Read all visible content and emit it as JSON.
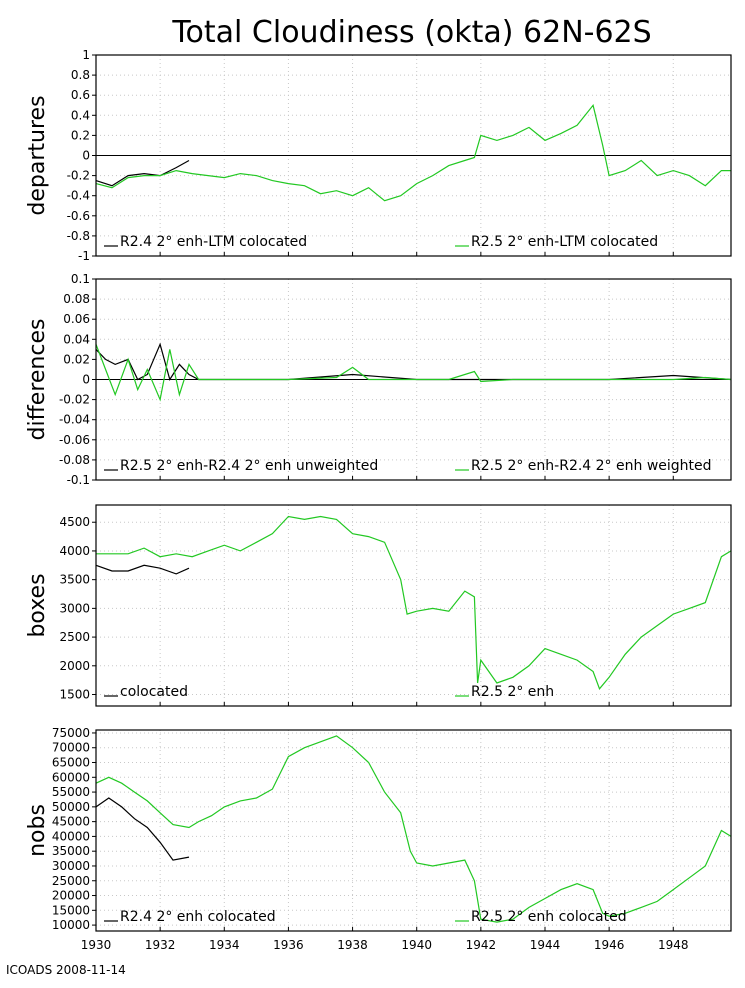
{
  "title": "Total Cloudiness (okta) 62N-62S",
  "credit": "ICOADS 2008-11-14",
  "x_ticks": [
    "1930",
    "1932",
    "1934",
    "1936",
    "1938",
    "1940",
    "1942",
    "1944",
    "1946",
    "1948"
  ],
  "colors": {
    "black": "#000000",
    "green": "#22c822",
    "grid": "#c8c8c8"
  },
  "chart_data": [
    {
      "type": "line",
      "ylabel": "departures",
      "ylim": [
        -1,
        1
      ],
      "y_ticks": [
        "1",
        "0.8",
        "0.6",
        "0.4",
        "0.2",
        "0",
        "-0.2",
        "-0.4",
        "-0.6",
        "-0.8",
        "-1"
      ],
      "xlim": [
        1930,
        1949.8
      ],
      "zero_line": true,
      "legend": [
        "R2.4 2° enh-LTM colocated",
        "R2.5 2° enh-LTM colocated"
      ],
      "series": [
        {
          "name": "R2.4 2° enh-LTM colocated",
          "color": "#000000",
          "x": [
            1930,
            1930.5,
            1931,
            1931.5,
            1932,
            1932.5,
            1932.9
          ],
          "y": [
            -0.25,
            -0.3,
            -0.2,
            -0.18,
            -0.2,
            -0.12,
            -0.05
          ]
        },
        {
          "name": "R2.5 2° enh-LTM colocated",
          "color": "#22c822",
          "x": [
            1930,
            1930.5,
            1931,
            1931.5,
            1932,
            1932.5,
            1933,
            1933.5,
            1934,
            1934.5,
            1935,
            1935.5,
            1936,
            1936.5,
            1937,
            1937.5,
            1938,
            1938.5,
            1939,
            1939.5,
            1940,
            1940.5,
            1941,
            1941.5,
            1941.8,
            1942,
            1942.5,
            1943,
            1943.5,
            1944,
            1944.5,
            1945,
            1945.5,
            1945.8,
            1946,
            1946.5,
            1947,
            1947.5,
            1948,
            1948.5,
            1949,
            1949.5,
            1949.8
          ],
          "y": [
            -0.28,
            -0.32,
            -0.22,
            -0.2,
            -0.2,
            -0.15,
            -0.18,
            -0.2,
            -0.22,
            -0.18,
            -0.2,
            -0.25,
            -0.28,
            -0.3,
            -0.38,
            -0.35,
            -0.4,
            -0.32,
            -0.45,
            -0.4,
            -0.28,
            -0.2,
            -0.1,
            -0.05,
            -0.02,
            0.2,
            0.15,
            0.2,
            0.28,
            0.15,
            0.22,
            0.3,
            0.5,
            0.1,
            -0.2,
            -0.15,
            -0.05,
            -0.2,
            -0.15,
            -0.2,
            -0.3,
            -0.15,
            -0.15
          ]
        }
      ]
    },
    {
      "type": "line",
      "ylabel": "differences",
      "ylim": [
        -0.1,
        0.1
      ],
      "y_ticks": [
        "0.1",
        "0.08",
        "0.06",
        "0.04",
        "0.02",
        "0",
        "-0.02",
        "-0.04",
        "-0.06",
        "-0.08",
        "-0.1"
      ],
      "xlim": [
        1930,
        1949.8
      ],
      "zero_line": true,
      "legend": [
        "R2.5 2° enh-R2.4 2° enh unweighted",
        "R2.5 2° enh-R2.4 2° enh weighted"
      ],
      "series": [
        {
          "name": "R2.5 2° enh-R2.4 2° enh unweighted",
          "color": "#000000",
          "x": [
            1930,
            1930.3,
            1930.6,
            1931,
            1931.3,
            1931.6,
            1932,
            1932.3,
            1932.6,
            1932.9,
            1933.2,
            1936,
            1938,
            1940,
            1942,
            1944,
            1946,
            1948,
            1949.8
          ],
          "y": [
            0.03,
            0.02,
            0.015,
            0.02,
            0.0,
            0.005,
            0.035,
            0.0,
            0.015,
            0.005,
            0.0,
            0.0,
            0.005,
            0.0,
            0.0,
            0.0,
            0.0,
            0.004,
            0.0
          ]
        },
        {
          "name": "R2.5 2° enh-R2.4 2° enh weighted",
          "color": "#22c822",
          "x": [
            1930,
            1930.3,
            1930.6,
            1931,
            1931.3,
            1931.6,
            1932,
            1932.3,
            1932.6,
            1932.9,
            1933.2,
            1934,
            1936,
            1937.5,
            1938,
            1938.5,
            1940,
            1941,
            1941.8,
            1942,
            1943,
            1944,
            1946,
            1948,
            1949,
            1949.8
          ],
          "y": [
            0.035,
            0.01,
            -0.015,
            0.02,
            -0.01,
            0.01,
            -0.02,
            0.03,
            -0.015,
            0.015,
            0.0,
            0.0,
            0.0,
            0.002,
            0.012,
            0.0,
            0.0,
            0.0,
            0.008,
            -0.002,
            0.0,
            0.0,
            0.0,
            0.0,
            0.002,
            0.0
          ]
        }
      ]
    },
    {
      "type": "line",
      "ylabel": "boxes",
      "ylim": [
        1300,
        4800
      ],
      "y_ticks": [
        "4500",
        "4000",
        "3500",
        "3000",
        "2500",
        "2000",
        "1500"
      ],
      "y_tick_values": [
        4500,
        4000,
        3500,
        3000,
        2500,
        2000,
        1500
      ],
      "xlim": [
        1930,
        1949.8
      ],
      "zero_line": false,
      "legend": [
        "colocated",
        "R2.5 2° enh"
      ],
      "series": [
        {
          "name": "colocated",
          "color": "#000000",
          "x": [
            1930,
            1930.5,
            1931,
            1931.5,
            1932,
            1932.5,
            1932.9
          ],
          "y": [
            3750,
            3650,
            3650,
            3750,
            3700,
            3600,
            3700
          ]
        },
        {
          "name": "R2.5 2° enh",
          "color": "#22c822",
          "x": [
            1930,
            1930.5,
            1931,
            1931.5,
            1932,
            1932.5,
            1933,
            1933.5,
            1934,
            1934.5,
            1935,
            1935.5,
            1936,
            1936.5,
            1937,
            1937.5,
            1938,
            1938.5,
            1939,
            1939.5,
            1939.7,
            1940,
            1940.5,
            1941,
            1941.5,
            1941.8,
            1941.9,
            1942,
            1942.5,
            1943,
            1943.5,
            1944,
            1944.5,
            1945,
            1945.5,
            1945.7,
            1946,
            1946.5,
            1947,
            1947.5,
            1948,
            1948.5,
            1949,
            1949.5,
            1949.8
          ],
          "y": [
            3950,
            3950,
            3950,
            4050,
            3900,
            3950,
            3900,
            4000,
            4100,
            4000,
            4150,
            4300,
            4600,
            4550,
            4600,
            4550,
            4300,
            4250,
            4150,
            3500,
            2900,
            2950,
            3000,
            2950,
            3300,
            3200,
            1700,
            2100,
            1700,
            1800,
            2000,
            2300,
            2200,
            2100,
            1900,
            1600,
            1800,
            2200,
            2500,
            2700,
            2900,
            3000,
            3100,
            3900,
            4000
          ]
        }
      ]
    },
    {
      "type": "line",
      "ylabel": "nobs",
      "ylim": [
        8000,
        76000
      ],
      "y_ticks": [
        "75000",
        "70000",
        "65000",
        "60000",
        "55000",
        "50000",
        "45000",
        "40000",
        "35000",
        "30000",
        "25000",
        "20000",
        "15000",
        "10000"
      ],
      "y_tick_values": [
        75000,
        70000,
        65000,
        60000,
        55000,
        50000,
        45000,
        40000,
        35000,
        30000,
        25000,
        20000,
        15000,
        10000
      ],
      "xlim": [
        1930,
        1949.8
      ],
      "zero_line": false,
      "legend": [
        "R2.4 2° enh colocated",
        "R2.5 2° enh colocated"
      ],
      "series": [
        {
          "name": "R2.4 2° enh colocated",
          "color": "#000000",
          "x": [
            1930,
            1930.4,
            1930.8,
            1931.2,
            1931.6,
            1932,
            1932.4,
            1932.9
          ],
          "y": [
            50000,
            53000,
            50000,
            46000,
            43000,
            38000,
            32000,
            33000
          ]
        },
        {
          "name": "R2.5 2° enh colocated",
          "color": "#22c822",
          "x": [
            1930,
            1930.4,
            1930.8,
            1931.2,
            1931.6,
            1932,
            1932.4,
            1932.9,
            1933.2,
            1933.6,
            1934,
            1934.5,
            1935,
            1935.5,
            1936,
            1936.5,
            1937,
            1937.5,
            1938,
            1938.5,
            1939,
            1939.5,
            1939.8,
            1940,
            1940.5,
            1941,
            1941.5,
            1941.8,
            1942,
            1942.5,
            1943,
            1943.5,
            1944,
            1944.5,
            1945,
            1945.5,
            1945.8,
            1946,
            1946.5,
            1947,
            1947.5,
            1948,
            1948.5,
            1949,
            1949.5,
            1949.8
          ],
          "y": [
            58000,
            60000,
            58000,
            55000,
            52000,
            48000,
            44000,
            43000,
            45000,
            47000,
            50000,
            52000,
            53000,
            56000,
            67000,
            70000,
            72000,
            74000,
            70000,
            65000,
            55000,
            48000,
            35000,
            31000,
            30000,
            31000,
            32000,
            25000,
            12000,
            11000,
            12000,
            16000,
            19000,
            22000,
            24000,
            22000,
            14000,
            13000,
            14000,
            16000,
            18000,
            22000,
            26000,
            30000,
            42000,
            40000
          ]
        }
      ]
    }
  ]
}
